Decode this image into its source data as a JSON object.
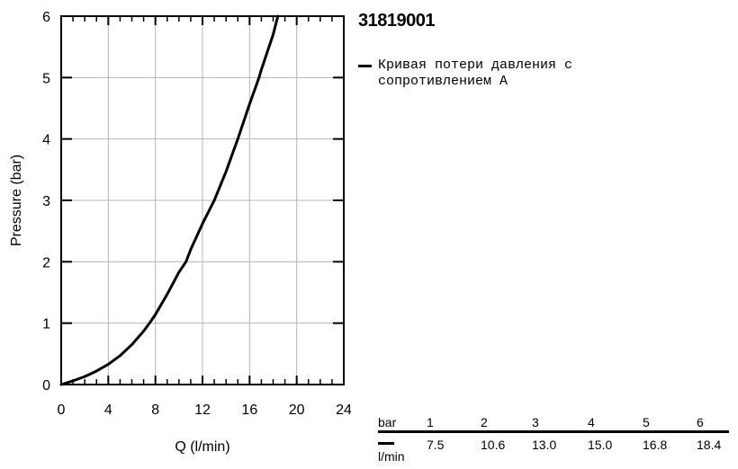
{
  "product_code": "31819001",
  "legend": {
    "entries": [
      {
        "label": "Кривая потери давления с\nсопротивлением А",
        "color": "#000000"
      }
    ]
  },
  "chart_data": {
    "type": "line",
    "xlabel": "Q (l/min)",
    "ylabel": "Pressure (bar)",
    "xlim": [
      0,
      24
    ],
    "ylim": [
      0,
      6
    ],
    "xticks": [
      "0",
      "4",
      "8",
      "12",
      "16",
      "20",
      "24"
    ],
    "yticks": [
      "0",
      "1",
      "2",
      "3",
      "4",
      "5",
      "6"
    ],
    "grid": true,
    "legend_position": "right",
    "series": [
      {
        "name": "Кривая потери давления с сопротивлением А",
        "color": "#000000",
        "x": [
          0,
          1,
          2,
          3,
          4,
          5,
          6,
          7,
          7.5,
          8,
          9,
          10,
          10.6,
          11,
          12,
          13,
          14,
          15,
          16,
          16.8,
          17,
          18,
          18.4
        ],
        "y": [
          0,
          0.06,
          0.13,
          0.22,
          0.33,
          0.47,
          0.65,
          0.87,
          1.0,
          1.14,
          1.47,
          1.83,
          2.0,
          2.2,
          2.62,
          3.0,
          3.47,
          4.0,
          4.57,
          5.0,
          5.13,
          5.7,
          6.0
        ]
      }
    ],
    "table": {
      "row_labels": [
        "bar",
        "l/min"
      ],
      "pressure": [
        "1",
        "2",
        "3",
        "4",
        "5",
        "6"
      ],
      "flow": [
        "7.5",
        "10.6",
        "13.0",
        "15.0",
        "16.8",
        "18.4"
      ]
    }
  }
}
